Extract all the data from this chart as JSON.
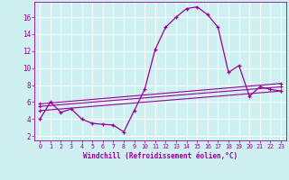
{
  "xlabel": "Windchill (Refroidissement éolien,°C)",
  "bg_color": "#cff0f0",
  "line_color": "#990099",
  "grid_color": "#ffffff",
  "xlim": [
    -0.5,
    23.5
  ],
  "ylim": [
    1.5,
    17.8
  ],
  "xticks": [
    0,
    1,
    2,
    3,
    4,
    5,
    6,
    7,
    8,
    9,
    10,
    11,
    12,
    13,
    14,
    15,
    16,
    17,
    18,
    19,
    20,
    21,
    22,
    23
  ],
  "yticks": [
    2,
    4,
    6,
    8,
    10,
    12,
    14,
    16
  ],
  "curve1_x": [
    0,
    1,
    2,
    3,
    4,
    5,
    6,
    7,
    8,
    9,
    10,
    11,
    12,
    13,
    14,
    15,
    16,
    17,
    18,
    19,
    20,
    21,
    22,
    23
  ],
  "curve1_y": [
    4.0,
    6.0,
    4.8,
    5.2,
    4.0,
    3.5,
    3.4,
    3.3,
    2.5,
    5.0,
    7.5,
    12.2,
    14.8,
    16.0,
    17.0,
    17.2,
    16.3,
    14.8,
    9.5,
    10.3,
    6.7,
    7.8,
    7.5,
    7.3
  ],
  "line2_x": [
    0,
    23
  ],
  "line2_y": [
    5.8,
    8.2
  ],
  "line3_x": [
    0,
    23
  ],
  "line3_y": [
    5.5,
    7.8
  ],
  "line4_x": [
    0,
    23
  ],
  "line4_y": [
    5.0,
    7.3
  ]
}
